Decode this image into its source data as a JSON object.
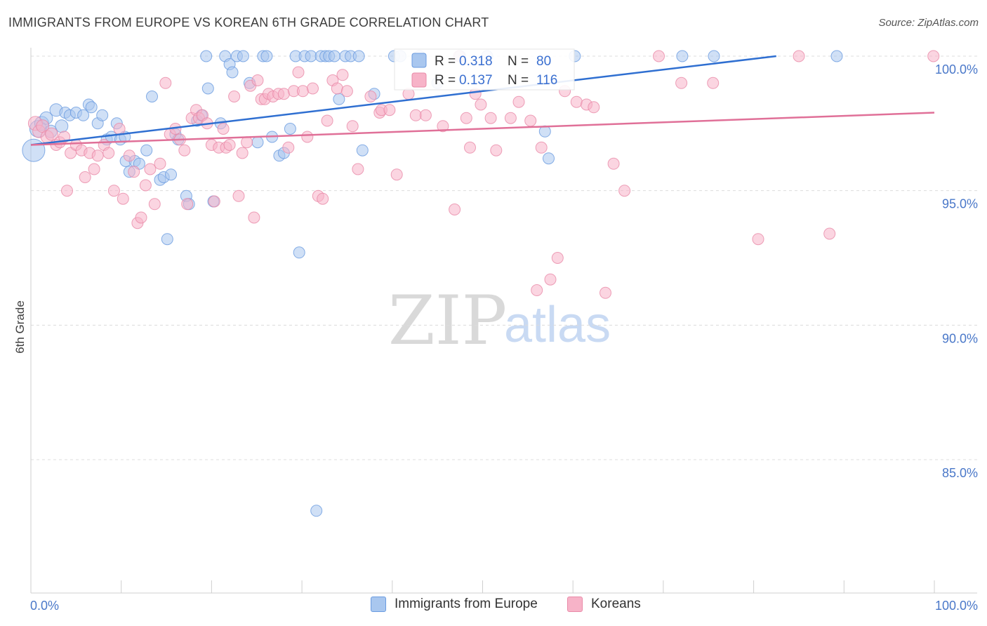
{
  "title": "IMMIGRANTS FROM EUROPE VS KOREAN 6TH GRADE CORRELATION CHART",
  "source": "Source: ZipAtlas.com",
  "watermark": {
    "zip": "ZIP",
    "atlas": "atlas"
  },
  "legend": {
    "r_label": "R =",
    "n_label": "N =",
    "rows": [
      {
        "r": "0.318",
        "n": "80",
        "fill": "#a9c7ef",
        "stroke": "#6a9be0"
      },
      {
        "r": "0.137",
        "n": "116",
        "fill": "#f7b3c8",
        "stroke": "#e98aa8"
      }
    ]
  },
  "bottom_legend": [
    {
      "label": "Immigrants from Europe",
      "color": "#a9c7ef"
    },
    {
      "label": "Koreans",
      "color": "#f7b3c8"
    }
  ],
  "chart_data": {
    "type": "scatter",
    "title": "IMMIGRANTS FROM EUROPE VS KOREAN 6TH GRADE CORRELATION CHART",
    "xlabel": "",
    "ylabel": "6th Grade",
    "xlim": [
      0,
      100
    ],
    "ylim": [
      80.5,
      100.3
    ],
    "x_tick_labels": [
      "0.0%",
      "100.0%"
    ],
    "y_ticks": [
      85,
      90,
      95,
      100
    ],
    "y_tick_labels": [
      "85.0%",
      "90.0%",
      "95.0%",
      "100.0%"
    ],
    "grid": true,
    "legend_position": "top-center",
    "series": [
      {
        "name": "Immigrants from Europe",
        "color": "#a9c7ef",
        "stroke": "#6a9be0",
        "line_color": "#2f6fd1",
        "trend": {
          "x": [
            0,
            82.5
          ],
          "y": [
            96.7,
            100.0
          ]
        },
        "points": [
          [
            0.3,
            96.5,
            16
          ],
          [
            0.8,
            97.3,
            12
          ],
          [
            1.2,
            97.5,
            10
          ],
          [
            1.7,
            97.7,
            9
          ],
          [
            2.2,
            97.2,
            9
          ],
          [
            2.8,
            98.0,
            9
          ],
          [
            3.4,
            97.4,
            9
          ],
          [
            3.8,
            97.9,
            8
          ],
          [
            4.3,
            97.8,
            8
          ],
          [
            5.0,
            97.9,
            8
          ],
          [
            5.8,
            97.8,
            8
          ],
          [
            6.4,
            98.2,
            8
          ],
          [
            6.7,
            98.1,
            8
          ],
          [
            7.4,
            97.5,
            8
          ],
          [
            7.9,
            97.8,
            8
          ],
          [
            8.4,
            96.9,
            8
          ],
          [
            8.9,
            97.0,
            8
          ],
          [
            9.5,
            97.5,
            8
          ],
          [
            9.9,
            96.9,
            8
          ],
          [
            10.4,
            97.0,
            8
          ],
          [
            10.5,
            96.1,
            8
          ],
          [
            10.9,
            95.7,
            8
          ],
          [
            11.5,
            96.1,
            8
          ],
          [
            12.0,
            96.0,
            8
          ],
          [
            12.8,
            96.5,
            8
          ],
          [
            13.4,
            98.5,
            8
          ],
          [
            14.3,
            95.4,
            8
          ],
          [
            14.7,
            95.5,
            8
          ],
          [
            15.1,
            93.2,
            8
          ],
          [
            15.5,
            95.6,
            8
          ],
          [
            16.0,
            97.1,
            8
          ],
          [
            16.3,
            96.9,
            8
          ],
          [
            17.2,
            94.8,
            8
          ],
          [
            17.5,
            94.5,
            8
          ],
          [
            18.4,
            97.6,
            8
          ],
          [
            18.9,
            97.8,
            8
          ],
          [
            19.4,
            100.0,
            8
          ],
          [
            19.6,
            98.8,
            8
          ],
          [
            20.2,
            94.6,
            8
          ],
          [
            21.0,
            97.5,
            8
          ],
          [
            21.5,
            100.0,
            8
          ],
          [
            22.0,
            99.7,
            8
          ],
          [
            22.3,
            99.4,
            8
          ],
          [
            22.8,
            100.0,
            8
          ],
          [
            23.5,
            100.0,
            8
          ],
          [
            24.2,
            99.0,
            8
          ],
          [
            25.1,
            96.8,
            8
          ],
          [
            25.7,
            100.0,
            8
          ],
          [
            26.1,
            100.0,
            8
          ],
          [
            26.7,
            97.0,
            8
          ],
          [
            27.5,
            96.3,
            8
          ],
          [
            28.0,
            96.4,
            8
          ],
          [
            28.7,
            97.3,
            8
          ],
          [
            29.3,
            100.0,
            8
          ],
          [
            29.7,
            92.7,
            8
          ],
          [
            30.3,
            100.0,
            8
          ],
          [
            31.0,
            100.0,
            8
          ],
          [
            31.6,
            83.1,
            8
          ],
          [
            32.1,
            100.0,
            8
          ],
          [
            32.6,
            100.0,
            8
          ],
          [
            33.0,
            100.0,
            8
          ],
          [
            33.6,
            100.0,
            8
          ],
          [
            34.1,
            98.4,
            8
          ],
          [
            34.8,
            100.0,
            8
          ],
          [
            35.4,
            100.0,
            8
          ],
          [
            36.3,
            100.0,
            8
          ],
          [
            36.7,
            96.5,
            8
          ],
          [
            38.0,
            98.6,
            8
          ],
          [
            40.2,
            100.0,
            8
          ],
          [
            40.9,
            100.0,
            8
          ],
          [
            43.0,
            100.0,
            8
          ],
          [
            45.0,
            99.0,
            8
          ],
          [
            47.5,
            100.0,
            8
          ],
          [
            50.5,
            100.0,
            8
          ],
          [
            56.9,
            97.2,
            8
          ],
          [
            57.3,
            96.2,
            8
          ],
          [
            60.2,
            100.0,
            8
          ],
          [
            72.1,
            100.0,
            8
          ],
          [
            75.6,
            100.0,
            8
          ],
          [
            89.2,
            100.0,
            8
          ]
        ]
      },
      {
        "name": "Koreans",
        "color": "#f7b3c8",
        "stroke": "#e98aa8",
        "line_color": "#e07098",
        "trend": {
          "x": [
            0,
            100
          ],
          "y": [
            96.7,
            97.9
          ]
        },
        "points": [
          [
            0.5,
            97.5,
            10
          ],
          [
            0.9,
            97.2,
            9
          ],
          [
            1.3,
            97.4,
            9
          ],
          [
            1.8,
            97.0,
            9
          ],
          [
            2.3,
            97.1,
            9
          ],
          [
            2.8,
            96.7,
            8
          ],
          [
            3.2,
            96.8,
            8
          ],
          [
            3.7,
            97.0,
            8
          ],
          [
            4.0,
            95.0,
            8
          ],
          [
            4.4,
            96.4,
            8
          ],
          [
            5.0,
            96.7,
            8
          ],
          [
            5.6,
            96.5,
            8
          ],
          [
            6.0,
            95.5,
            8
          ],
          [
            6.5,
            96.4,
            8
          ],
          [
            7.0,
            95.8,
            8
          ],
          [
            7.4,
            96.3,
            8
          ],
          [
            8.1,
            96.7,
            8
          ],
          [
            8.6,
            96.4,
            8
          ],
          [
            9.2,
            95.0,
            8
          ],
          [
            9.8,
            97.3,
            8
          ],
          [
            10.2,
            94.7,
            8
          ],
          [
            10.9,
            96.3,
            8
          ],
          [
            11.4,
            95.7,
            8
          ],
          [
            11.8,
            93.8,
            8
          ],
          [
            12.2,
            94.0,
            8
          ],
          [
            12.7,
            95.2,
            8
          ],
          [
            13.2,
            95.8,
            8
          ],
          [
            13.7,
            94.5,
            8
          ],
          [
            14.3,
            96.0,
            8
          ],
          [
            14.9,
            99.0,
            8
          ],
          [
            15.4,
            97.1,
            8
          ],
          [
            16.0,
            97.3,
            8
          ],
          [
            16.5,
            96.9,
            8
          ],
          [
            17.0,
            96.5,
            8
          ],
          [
            17.3,
            94.5,
            8
          ],
          [
            17.8,
            97.7,
            8
          ],
          [
            18.3,
            98.0,
            8
          ],
          [
            18.6,
            97.7,
            8
          ],
          [
            19.0,
            97.8,
            8
          ],
          [
            19.5,
            97.5,
            8
          ],
          [
            20.0,
            96.7,
            8
          ],
          [
            20.3,
            94.6,
            8
          ],
          [
            20.8,
            96.6,
            8
          ],
          [
            21.3,
            97.3,
            8
          ],
          [
            21.6,
            96.6,
            8
          ],
          [
            22.0,
            96.7,
            8
          ],
          [
            22.5,
            98.5,
            8
          ],
          [
            23.0,
            94.8,
            8
          ],
          [
            23.4,
            96.4,
            8
          ],
          [
            23.9,
            96.8,
            8
          ],
          [
            24.3,
            98.9,
            8
          ],
          [
            24.7,
            94.0,
            8
          ],
          [
            25.1,
            99.1,
            8
          ],
          [
            25.5,
            98.4,
            8
          ],
          [
            25.9,
            98.4,
            8
          ],
          [
            26.3,
            98.6,
            8
          ],
          [
            26.8,
            98.5,
            8
          ],
          [
            27.4,
            98.6,
            8
          ],
          [
            28.0,
            98.6,
            8
          ],
          [
            28.5,
            96.6,
            8
          ],
          [
            29.1,
            98.7,
            8
          ],
          [
            29.6,
            99.4,
            8
          ],
          [
            30.1,
            98.7,
            8
          ],
          [
            30.6,
            97.0,
            8
          ],
          [
            31.2,
            98.8,
            8
          ],
          [
            31.8,
            94.8,
            8
          ],
          [
            32.3,
            94.7,
            8
          ],
          [
            32.8,
            97.6,
            8
          ],
          [
            33.4,
            99.1,
            8
          ],
          [
            33.9,
            98.8,
            8
          ],
          [
            34.5,
            99.3,
            8
          ],
          [
            35.0,
            98.7,
            8
          ],
          [
            35.6,
            97.4,
            8
          ],
          [
            36.2,
            95.8,
            8
          ],
          [
            37.6,
            98.5,
            8
          ],
          [
            38.6,
            97.9,
            8
          ],
          [
            38.8,
            98.0,
            8
          ],
          [
            39.7,
            98.0,
            8
          ],
          [
            40.5,
            95.6,
            8
          ],
          [
            41.8,
            98.6,
            8
          ],
          [
            42.6,
            97.8,
            8
          ],
          [
            43.7,
            97.8,
            8
          ],
          [
            45.6,
            97.4,
            8
          ],
          [
            46.9,
            94.3,
            8
          ],
          [
            47.4,
            100.0,
            8
          ],
          [
            48.2,
            97.7,
            8
          ],
          [
            48.6,
            96.6,
            8
          ],
          [
            49.2,
            98.6,
            8
          ],
          [
            49.8,
            98.2,
            8
          ],
          [
            50.9,
            97.7,
            8
          ],
          [
            51.5,
            96.5,
            8
          ],
          [
            53.1,
            97.7,
            8
          ],
          [
            54.0,
            98.3,
            8
          ],
          [
            55.3,
            97.6,
            8
          ],
          [
            56.5,
            96.6,
            8
          ],
          [
            58.3,
            92.5,
            8
          ],
          [
            59.1,
            98.7,
            8
          ],
          [
            60.4,
            98.3,
            8
          ],
          [
            61.5,
            98.2,
            8
          ],
          [
            62.3,
            98.1,
            8
          ],
          [
            63.6,
            91.2,
            8
          ],
          [
            64.5,
            96.0,
            8
          ],
          [
            65.7,
            95.0,
            8
          ],
          [
            69.5,
            100.0,
            8
          ],
          [
            72.0,
            99.0,
            8
          ],
          [
            75.5,
            99.0,
            8
          ],
          [
            80.5,
            93.2,
            8
          ],
          [
            85.0,
            100.0,
            8
          ],
          [
            88.4,
            93.4,
            8
          ],
          [
            99.9,
            100.0,
            8
          ],
          [
            56.0,
            91.3,
            8
          ],
          [
            57.5,
            91.7,
            8
          ]
        ]
      }
    ]
  }
}
